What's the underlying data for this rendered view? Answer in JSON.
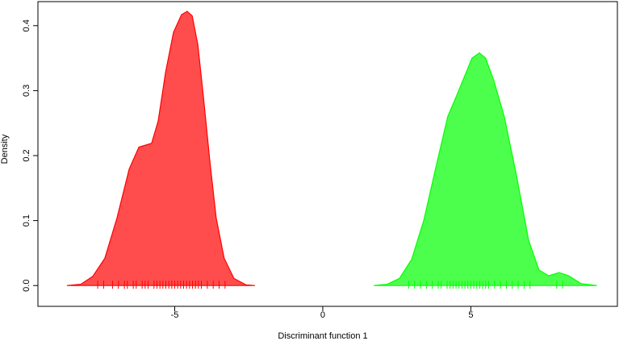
{
  "chart_data": {
    "type": "density",
    "xlabel": "Discriminant function 1",
    "ylabel": "Density",
    "xlim": [
      -9.62,
      9.95
    ],
    "ylim": [
      -0.032,
      0.437
    ],
    "xticks": [
      -5,
      0,
      5
    ],
    "yticks": [
      {
        "value": 0,
        "label": "0.0"
      },
      0.1,
      0.2,
      0.3,
      0.4
    ],
    "series": [
      {
        "color": "#ff0000",
        "fill": "#ff4d4d",
        "x": [
          -8.64,
          -8.17,
          -7.77,
          -7.36,
          -6.95,
          -6.54,
          -6.21,
          -5.99,
          -5.78,
          -5.56,
          -5.31,
          -5.04,
          -4.77,
          -4.58,
          -4.41,
          -4.22,
          -4.03,
          -3.81,
          -3.6,
          -3.33,
          -3.0,
          -2.59,
          -2.29
        ],
        "values": [
          0,
          0.002,
          0.014,
          0.042,
          0.104,
          0.179,
          0.213,
          0.216,
          0.219,
          0.253,
          0.328,
          0.39,
          0.417,
          0.422,
          0.415,
          0.371,
          0.29,
          0.19,
          0.104,
          0.042,
          0.011,
          0.001,
          0
        ],
        "rug": [
          -7.6,
          -7.4,
          -7.1,
          -6.9,
          -6.7,
          -6.6,
          -6.4,
          -6.3,
          -6.1,
          -6.0,
          -5.9,
          -5.7,
          -5.6,
          -5.5,
          -5.4,
          -5.3,
          -5.2,
          -5.1,
          -5.0,
          -4.9,
          -4.8,
          -4.7,
          -4.6,
          -4.5,
          -4.4,
          -4.3,
          -4.2,
          -4.1,
          -3.9,
          -3.7,
          -3.5,
          -3.3
        ]
      },
      {
        "color": "#00ff00",
        "fill": "#4dff4d",
        "x": [
          1.72,
          2.18,
          2.59,
          3.0,
          3.41,
          3.81,
          4.22,
          4.5,
          4.77,
          5.04,
          5.29,
          5.5,
          5.78,
          6.13,
          6.54,
          6.95,
          7.3,
          7.63,
          7.98,
          8.31,
          8.72,
          9.26
        ],
        "values": [
          0,
          0.002,
          0.011,
          0.04,
          0.1,
          0.18,
          0.26,
          0.29,
          0.32,
          0.35,
          0.358,
          0.35,
          0.315,
          0.26,
          0.17,
          0.07,
          0.024,
          0.015,
          0.02,
          0.015,
          0.003,
          0
        ],
        "rug": [
          2.9,
          3.1,
          3.3,
          3.5,
          3.7,
          3.9,
          4.0,
          4.2,
          4.3,
          4.4,
          4.5,
          4.6,
          4.7,
          4.8,
          4.9,
          5.0,
          5.1,
          5.2,
          5.3,
          5.4,
          5.5,
          5.6,
          5.8,
          6.0,
          6.2,
          6.4,
          6.6,
          6.8,
          7.0,
          7.9,
          8.1
        ]
      }
    ]
  }
}
